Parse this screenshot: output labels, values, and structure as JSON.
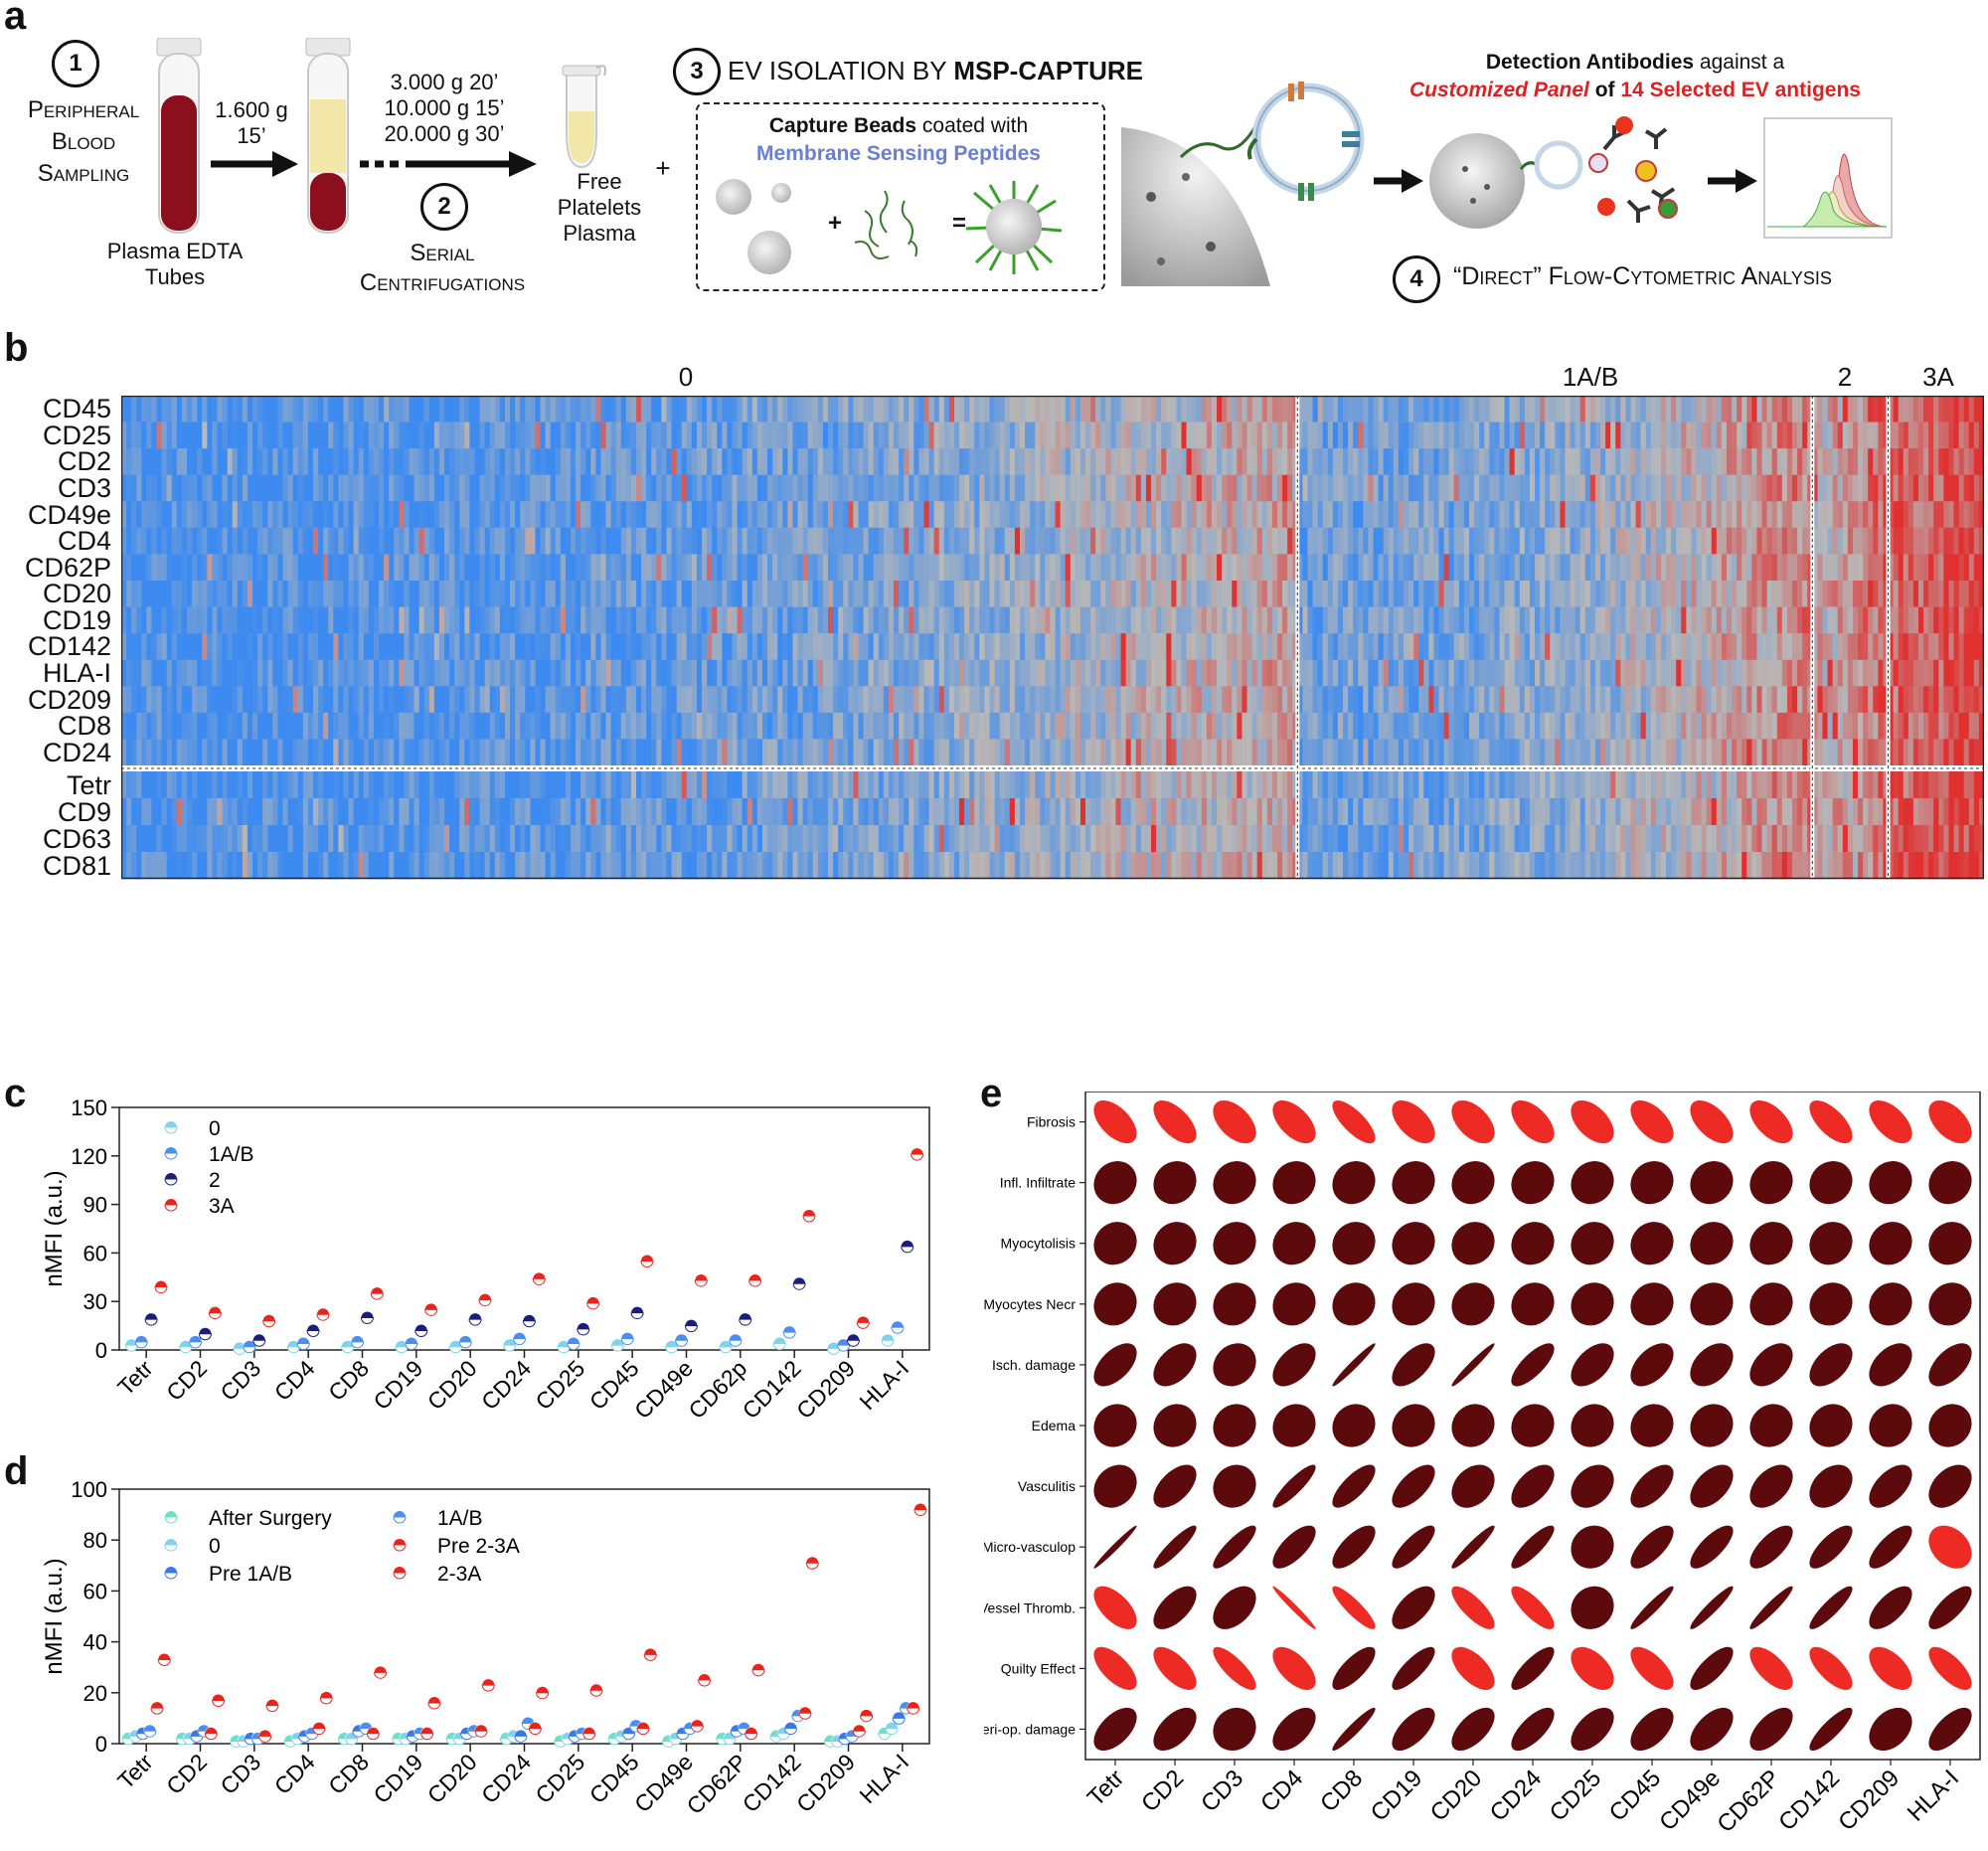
{
  "panel_labels": {
    "a": "a",
    "b": "b",
    "c": "c",
    "d": "d",
    "e": "e"
  },
  "panel_a": {
    "step1_num": "1",
    "step1_lines": [
      "Peripheral",
      "Blood",
      "Sampling"
    ],
    "tube_label": [
      "Plasma EDTA",
      "Tubes"
    ],
    "spin1": [
      "1.600 g",
      "15’"
    ],
    "spin2": [
      "3.000 g 20’",
      "10.000 g 15’",
      "20.000 g 30’"
    ],
    "step2_num": "2",
    "step2_lines": [
      "Serial",
      "Centrifugations"
    ],
    "ffp": [
      "Free",
      "Platelets",
      "Plasma"
    ],
    "plus": "+",
    "step3_num": "3",
    "step3_title_a": "EV ISOLATION BY ",
    "step3_title_b": "MSP-CAPTURE",
    "beads_line1_bold": "Capture Beads",
    "beads_line1_rest": " coated with",
    "beads_line2": "Membrane Sensing Peptides",
    "op_plus": "+",
    "op_eq": "=",
    "det_line1_bold": "Detection Antibodies",
    "det_line1_rest": " against a",
    "det_line2_red_italic": "Customized Panel",
    "det_line2_mid": " of ",
    "det_line2_red": "14 Selected EV antigens",
    "step4_num": "4",
    "step4_text": "“Direct” Flow-Cytometric Analysis",
    "colors": {
      "blood": "#8b0f1c",
      "plasma": "#f2e6a8",
      "accent_red": "#e02020",
      "msp_blue": "#6a7fd0",
      "vesicle": "#3a7f9e"
    }
  },
  "panel_b": {
    "groups": [
      "0",
      "1A/B",
      "2",
      "3A"
    ],
    "rows_top": [
      "CD45",
      "CD25",
      "CD2",
      "CD3",
      "CD49e",
      "CD4",
      "CD62P",
      "CD20",
      "CD19",
      "CD142",
      "HLA-I",
      "CD209",
      "CD8",
      "CD24"
    ],
    "rows_bottom": [
      "Tetr",
      "CD9",
      "CD63",
      "CD81"
    ],
    "group_counts": [
      233,
      102,
      15,
      19
    ],
    "colors": {
      "low": "#3d8bf0",
      "mid": "#b8b8b8",
      "high": "#e03030"
    }
  },
  "chart_data": [
    {
      "type": "scatter",
      "panel": "c",
      "title": "",
      "xlabel": "",
      "ylabel": "nMFI (a.u.)",
      "ylim": [
        0,
        150
      ],
      "yticks": [
        "0",
        "30",
        "60",
        "90",
        "120",
        "150"
      ],
      "categories": [
        "Tetr",
        "CD2",
        "CD3",
        "CD4",
        "CD8",
        "CD19",
        "CD20",
        "CD24",
        "CD25",
        "CD45",
        "CD49e",
        "CD62p",
        "CD142",
        "CD209",
        "HLA-I"
      ],
      "legend_position": "top-left",
      "series": [
        {
          "name": "0",
          "color": "#7fd3ee",
          "values": [
            3,
            2,
            1,
            2,
            2,
            2,
            2,
            3,
            2,
            3,
            2,
            2,
            4,
            1,
            6
          ]
        },
        {
          "name": "1A/B",
          "color": "#4a8ff0",
          "values": [
            5,
            5,
            2,
            4,
            5,
            4,
            5,
            7,
            4,
            7,
            6,
            6,
            11,
            3,
            14
          ]
        },
        {
          "name": "2",
          "color": "#1a1e7a",
          "values": [
            19,
            10,
            6,
            12,
            20,
            12,
            19,
            18,
            13,
            23,
            15,
            19,
            41,
            6,
            64
          ]
        },
        {
          "name": "3A",
          "color": "#e8241c",
          "values": [
            39,
            23,
            18,
            22,
            35,
            25,
            31,
            44,
            29,
            55,
            43,
            43,
            83,
            17,
            121
          ]
        }
      ]
    },
    {
      "type": "scatter",
      "panel": "d",
      "title": "",
      "xlabel": "",
      "ylabel": "nMFI (a.u.)",
      "ylim": [
        0,
        100
      ],
      "yticks": [
        "0",
        "20",
        "40",
        "60",
        "80",
        "100"
      ],
      "categories": [
        "Tetr",
        "CD2",
        "CD3",
        "CD4",
        "CD8",
        "CD19",
        "CD20",
        "CD24",
        "CD25",
        "CD45",
        "CD49e",
        "CD62P",
        "CD142",
        "CD209",
        "HLA-I"
      ],
      "legend_position": "top-left",
      "series": [
        {
          "name": "After Surgery",
          "color": "#6ee0c8",
          "values": [
            2,
            2,
            1,
            1,
            2,
            2,
            2,
            2,
            1,
            2,
            1,
            2,
            3,
            1,
            4
          ]
        },
        {
          "name": "0",
          "color": "#7fd3ee",
          "values": [
            3,
            2,
            1,
            2,
            2,
            2,
            2,
            3,
            2,
            3,
            2,
            2,
            4,
            1,
            6
          ]
        },
        {
          "name": "Pre 1A/B",
          "color": "#3a78e8",
          "values": [
            4,
            3,
            2,
            3,
            5,
            3,
            4,
            3,
            3,
            4,
            4,
            5,
            6,
            2,
            10
          ]
        },
        {
          "name": "1A/B",
          "color": "#4a8ff0",
          "values": [
            5,
            5,
            2,
            4,
            6,
            4,
            5,
            8,
            4,
            7,
            6,
            6,
            11,
            3,
            14
          ]
        },
        {
          "name": "Pre 2-3A",
          "color": "#e8241c",
          "values": [
            14,
            4,
            3,
            6,
            4,
            4,
            5,
            6,
            4,
            6,
            7,
            4,
            12,
            5,
            14
          ]
        },
        {
          "name": "2-3A",
          "color": "#e8241c",
          "values": [
            33,
            17,
            15,
            18,
            28,
            16,
            23,
            20,
            21,
            35,
            25,
            29,
            71,
            11,
            92
          ]
        }
      ]
    },
    {
      "type": "heatmap",
      "panel": "e",
      "title": "",
      "xlabel": "",
      "ylabel": "",
      "columns": [
        "Tetr",
        "CD2",
        "CD3",
        "CD4",
        "CD8",
        "CD19",
        "CD20",
        "CD24",
        "CD25",
        "CD45",
        "CD49e",
        "CD62P",
        "CD142",
        "CD209",
        "HLA-I"
      ],
      "rows": [
        "Fibrosis",
        "Infl. Infiltrate",
        "Myocytolisis",
        "Myocytes Necr",
        "Isch. damage",
        "Edema",
        "Vasculitis",
        "Micro-vasculop",
        "Vessel Thromb.",
        "Quilty Effect",
        "Peri-op. damage"
      ],
      "encoding": "ellipse; positive correlation = dark red, negative correlation = bright red; narrower = stronger",
      "values": [
        [
          -0.55,
          -0.6,
          -0.5,
          -0.55,
          -0.75,
          -0.55,
          -0.5,
          -0.55,
          -0.5,
          -0.55,
          -0.55,
          -0.55,
          -0.65,
          -0.55,
          -0.5
        ],
        [
          0.1,
          0.1,
          0.1,
          0.1,
          0.1,
          0.1,
          0.1,
          0.1,
          0.1,
          0.1,
          0.1,
          0.1,
          0.1,
          0.1,
          0.1
        ],
        [
          0.1,
          0.1,
          0.1,
          0.1,
          0.1,
          0.1,
          0.1,
          0.1,
          0.1,
          0.1,
          0.1,
          0.1,
          0.1,
          0.1,
          0.1
        ],
        [
          0.1,
          0.1,
          0.1,
          0.1,
          0.1,
          0.1,
          0.1,
          0.1,
          0.1,
          0.1,
          0.1,
          0.1,
          0.1,
          0.1,
          0.1
        ],
        [
          0.55,
          0.45,
          0.15,
          0.5,
          0.97,
          0.6,
          0.97,
          0.75,
          0.5,
          0.5,
          0.4,
          0.45,
          0.5,
          0.45,
          0.55
        ],
        [
          0.1,
          0.1,
          0.1,
          0.1,
          0.1,
          0.1,
          0.1,
          0.1,
          0.1,
          0.1,
          0.1,
          0.1,
          0.1,
          0.1,
          0.1
        ],
        [
          0.2,
          0.55,
          0.1,
          0.88,
          0.75,
          0.65,
          0.3,
          0.55,
          0.3,
          0.6,
          0.5,
          0.45,
          0.35,
          0.55,
          0.4
        ],
        [
          0.98,
          0.9,
          0.85,
          0.7,
          0.7,
          0.8,
          0.94,
          0.85,
          0.1,
          0.7,
          0.75,
          0.7,
          0.75,
          0.75,
          -0.3
        ],
        [
          -0.6,
          0.6,
          0.45,
          -0.98,
          -0.88,
          0.6,
          -0.78,
          -0.8,
          0.1,
          0.94,
          0.94,
          0.94,
          0.88,
          0.65,
          0.75
        ],
        [
          -0.65,
          -0.65,
          -0.8,
          -0.6,
          0.75,
          0.8,
          -0.6,
          0.8,
          -0.5,
          -0.65,
          0.75,
          -0.65,
          -0.7,
          -0.55,
          -0.7
        ],
        [
          0.55,
          0.55,
          0.1,
          0.55,
          0.94,
          0.65,
          0.6,
          0.7,
          0.55,
          0.55,
          0.55,
          0.6,
          0.85,
          0.35,
          0.65
        ]
      ],
      "colors": {
        "positive": "#5c0a0c",
        "negative": "#ee2a24"
      }
    }
  ]
}
